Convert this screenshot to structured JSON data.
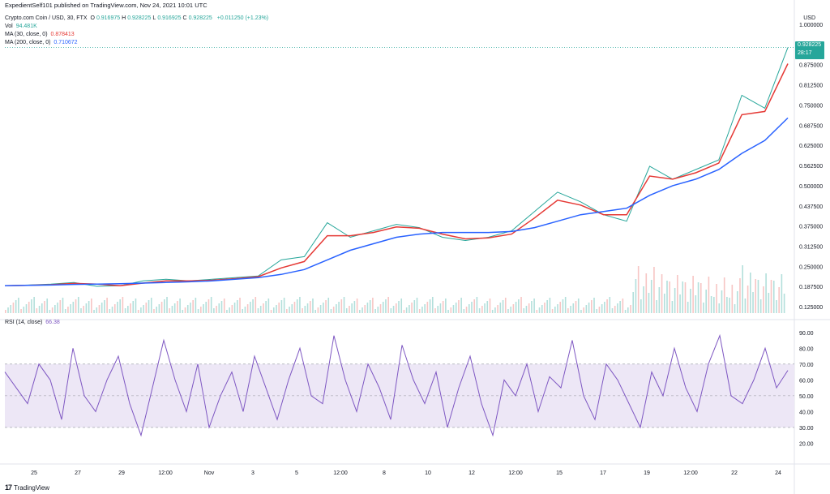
{
  "header": {
    "published": "ExpedientSelf101 published on TradingView.com, Nov 24, 2021 10:01 UTC",
    "symbol": "Crypto.com Coin / USD, 30, FTX",
    "ohlc": [
      {
        "k": "O",
        "v": "0.916975"
      },
      {
        "k": "H",
        "v": "0.928225"
      },
      {
        "k": "L",
        "v": "0.916925"
      },
      {
        "k": "C",
        "v": "0.928225"
      }
    ],
    "change": "+0.011250 (+1.23%)",
    "vol_label": "Vol",
    "vol_value": "94.481K",
    "ma30_label": "MA (30, close, 0)",
    "ma30_value": "0.878413",
    "ma200_label": "MA (200, close, 0)",
    "ma200_value": "0.710672",
    "rsi_label": "RSI (14, close)",
    "rsi_value": "66.38"
  },
  "price_tag": {
    "value": "0.928225",
    "countdown": "28:17"
  },
  "currency": "USD",
  "watermark": "TradingView",
  "colors": {
    "up": "#26a69a",
    "down": "#ef5350",
    "ma30": "#e53935",
    "ma200": "#2962ff",
    "rsi": "#7e57c2",
    "rsi_band": "#ede7f6"
  },
  "chart_data": [
    {
      "type": "line",
      "title": "Crypto.com Coin / USD, 30, FTX",
      "ylim": [
        0.09,
        1.0
      ],
      "y_ticks": [
        "1.000000",
        "0.937500",
        "0.875000",
        "0.812500",
        "0.750000",
        "0.687500",
        "0.625000",
        "0.562500",
        "0.500000",
        "0.437500",
        "0.375000",
        "0.312500",
        "0.250000",
        "0.187500",
        "0.125000"
      ],
      "x_ticks": [
        "25",
        "27",
        "29",
        "12:00",
        "Nov",
        "3",
        "5",
        "12:00",
        "8",
        "10",
        "12",
        "12:00",
        "15",
        "17",
        "19",
        "12:00",
        "22",
        "24"
      ],
      "series": [
        {
          "name": "Price",
          "x": [
            0,
            1,
            2,
            3,
            4,
            5,
            6,
            7,
            8,
            9,
            10,
            11,
            12,
            13,
            14,
            15,
            16,
            17,
            18,
            19,
            20,
            21,
            22,
            23,
            24,
            25,
            26,
            27,
            28,
            29,
            30,
            31,
            32,
            33,
            34
          ],
          "values": [
            0.19,
            0.192,
            0.195,
            0.2,
            0.188,
            0.19,
            0.205,
            0.21,
            0.205,
            0.21,
            0.215,
            0.22,
            0.27,
            0.28,
            0.385,
            0.34,
            0.36,
            0.38,
            0.37,
            0.34,
            0.33,
            0.34,
            0.36,
            0.42,
            0.48,
            0.45,
            0.41,
            0.39,
            0.56,
            0.52,
            0.55,
            0.58,
            0.78,
            0.74,
            0.928
          ]
        },
        {
          "name": "MA (30, close, 0)",
          "x": [
            0,
            1,
            2,
            3,
            4,
            5,
            6,
            7,
            8,
            9,
            10,
            11,
            12,
            13,
            14,
            15,
            16,
            17,
            18,
            19,
            20,
            21,
            22,
            23,
            24,
            25,
            26,
            27,
            28,
            29,
            30,
            31,
            32,
            33,
            34
          ],
          "values": [
            0.19,
            0.191,
            0.193,
            0.197,
            0.195,
            0.19,
            0.198,
            0.205,
            0.205,
            0.207,
            0.212,
            0.218,
            0.245,
            0.265,
            0.345,
            0.345,
            0.355,
            0.372,
            0.368,
            0.35,
            0.335,
            0.338,
            0.35,
            0.4,
            0.455,
            0.44,
            0.41,
            0.41,
            0.53,
            0.52,
            0.54,
            0.57,
            0.72,
            0.73,
            0.878
          ]
        },
        {
          "name": "MA (200, close, 0)",
          "x": [
            0,
            1,
            2,
            3,
            4,
            5,
            6,
            7,
            8,
            9,
            10,
            11,
            12,
            13,
            14,
            15,
            16,
            17,
            18,
            19,
            20,
            21,
            22,
            23,
            24,
            25,
            26,
            27,
            28,
            29,
            30,
            31,
            32,
            33,
            34
          ],
          "values": [
            0.19,
            0.191,
            0.192,
            0.194,
            0.195,
            0.196,
            0.198,
            0.2,
            0.202,
            0.205,
            0.21,
            0.215,
            0.225,
            0.24,
            0.27,
            0.3,
            0.32,
            0.34,
            0.35,
            0.355,
            0.355,
            0.355,
            0.358,
            0.37,
            0.39,
            0.41,
            0.42,
            0.43,
            0.47,
            0.5,
            0.52,
            0.55,
            0.6,
            0.64,
            0.71
          ]
        }
      ]
    },
    {
      "type": "line",
      "title": "RSI (14, close)",
      "ylim": [
        10,
        95
      ],
      "y_ticks": [
        "90.00",
        "80.00",
        "70.00",
        "60.00",
        "50.00",
        "40.00",
        "30.00",
        "20.00"
      ],
      "bands": {
        "upper": 70,
        "middle": 50,
        "lower": 30
      },
      "series": [
        {
          "name": "RSI (14, close)",
          "x": [
            0,
            1,
            2,
            3,
            4,
            5,
            6,
            7,
            8,
            9,
            10,
            11,
            12,
            13,
            14,
            15,
            16,
            17,
            18,
            19,
            20,
            21,
            22,
            23,
            24,
            25,
            26,
            27,
            28,
            29,
            30,
            31,
            32,
            33,
            34,
            35,
            36,
            37,
            38,
            39,
            40,
            41,
            42,
            43,
            44,
            45,
            46,
            47,
            48,
            49,
            50,
            51,
            52,
            53,
            54,
            55,
            56,
            57,
            58,
            59,
            60,
            61,
            62,
            63,
            64,
            65,
            66,
            67,
            68,
            69
          ],
          "values": [
            65,
            55,
            45,
            70,
            60,
            35,
            80,
            50,
            40,
            60,
            75,
            45,
            25,
            55,
            85,
            60,
            40,
            70,
            30,
            50,
            65,
            40,
            75,
            55,
            35,
            60,
            80,
            50,
            45,
            88,
            60,
            40,
            70,
            55,
            35,
            82,
            60,
            45,
            65,
            30,
            55,
            75,
            45,
            25,
            60,
            50,
            70,
            40,
            62,
            55,
            85,
            50,
            35,
            70,
            60,
            45,
            30,
            65,
            50,
            80,
            55,
            40,
            70,
            88,
            50,
            45,
            60,
            80,
            55,
            66
          ]
        }
      ]
    }
  ]
}
